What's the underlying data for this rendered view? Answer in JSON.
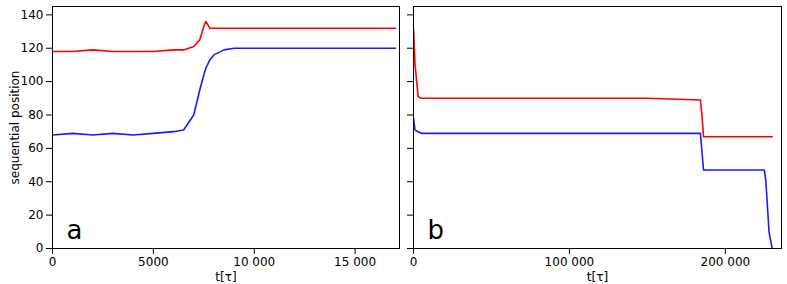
{
  "chart_data": [
    {
      "type": "line",
      "annotation": "a",
      "x_label": "t[τ]",
      "y_label": "sequential position",
      "x": [
        0,
        1000,
        2000,
        3000,
        4000,
        5000,
        6000,
        6500,
        7000,
        7300,
        7500,
        7600,
        7800,
        8000,
        8500,
        9000,
        10000,
        12000,
        15000,
        17000
      ],
      "series": [
        {
          "color": "#ff0000",
          "values": [
            118,
            118,
            119,
            118,
            118,
            118,
            119,
            119,
            121,
            125,
            133,
            136,
            132,
            132,
            132,
            132,
            132,
            132,
            132,
            132
          ]
        },
        {
          "color": "#1a1aff",
          "values": [
            68,
            69,
            68,
            69,
            68,
            69,
            70,
            71,
            80,
            95,
            104,
            108,
            113,
            116,
            119,
            120,
            120,
            120,
            120,
            120
          ]
        }
      ],
      "xlim": [
        0,
        17200
      ],
      "xticks": [
        0,
        5000,
        {
          "value": 10000,
          "label": "10 000"
        },
        {
          "value": 15000,
          "label": "15 000"
        }
      ],
      "ylim": [
        0,
        145
      ],
      "yticks": [
        0,
        20,
        40,
        60,
        80,
        100,
        120,
        140
      ]
    },
    {
      "type": "line",
      "annotation": "b",
      "x_label": "t[τ]",
      "x": [
        0,
        1000,
        3000,
        5000,
        50000,
        100000,
        150000,
        184000,
        185000,
        186000,
        200000,
        220000,
        225000,
        226000,
        228000,
        230000
      ],
      "series": [
        {
          "color": "#ff0000",
          "values": [
            132,
            110,
            91,
            90,
            90,
            90,
            90,
            89,
            80,
            67,
            67,
            67,
            67,
            67,
            67,
            67
          ]
        },
        {
          "color": "#1a1aff",
          "values": [
            78,
            71,
            70,
            69,
            69,
            69,
            69,
            69,
            58,
            47,
            47,
            47,
            47,
            40,
            10,
            0
          ]
        }
      ],
      "xlim": [
        0,
        236000
      ],
      "xticks": [
        0,
        {
          "value": 100000,
          "label": "100 000"
        },
        {
          "value": 200000,
          "label": "200 000"
        }
      ],
      "ylim": [
        0,
        145
      ],
      "yticks": [
        0,
        20,
        40,
        60,
        80,
        100,
        120,
        140
      ],
      "tick_labels": "x"
    }
  ]
}
